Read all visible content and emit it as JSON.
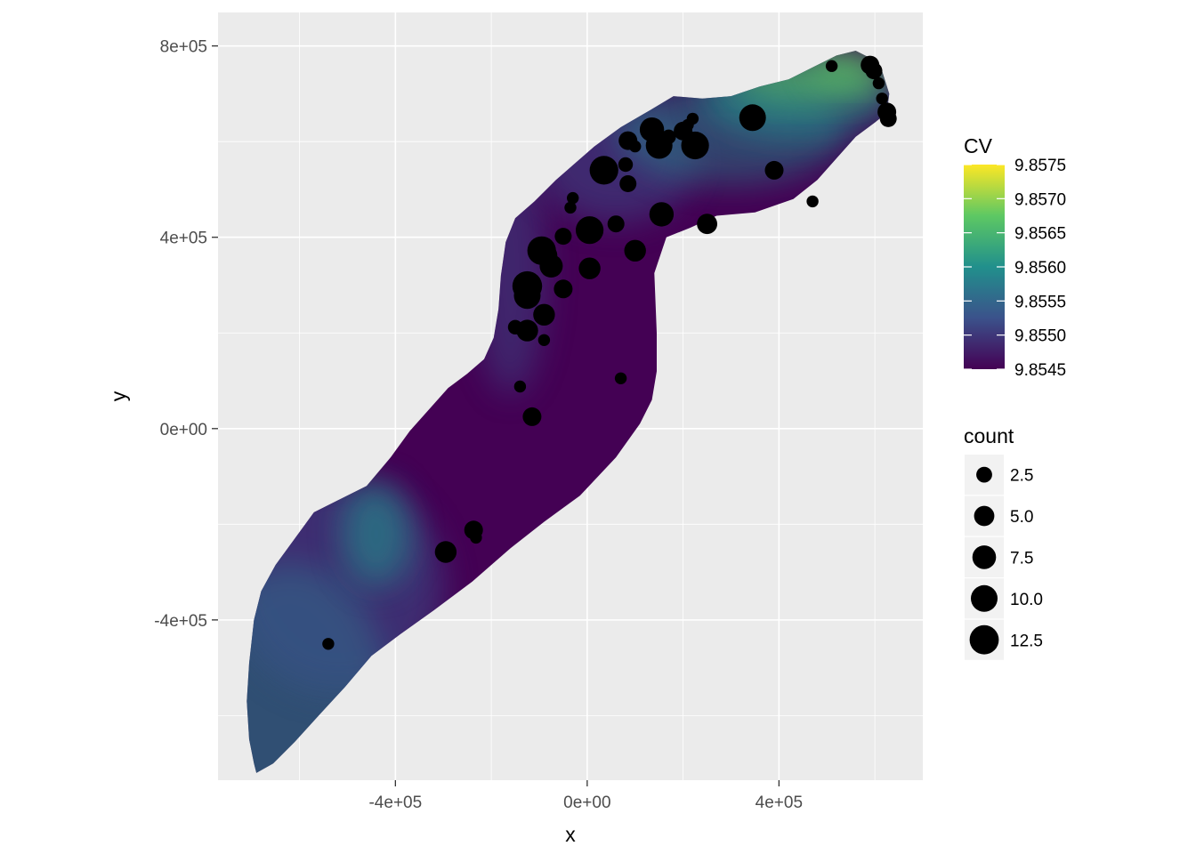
{
  "chart_data": {
    "type": "heatmap",
    "title": "",
    "xlabel": "x",
    "ylabel": "y",
    "xlim": [
      -770000,
      700000
    ],
    "ylim": [
      -735000,
      870000
    ],
    "x_ticks": [
      {
        "value": -400000,
        "label": "-4e+05"
      },
      {
        "value": 0,
        "label": "0e+00"
      },
      {
        "value": 400000,
        "label": "4e+05"
      }
    ],
    "y_ticks": [
      {
        "value": -400000,
        "label": "-4e+05"
      },
      {
        "value": 0,
        "label": "0e+00"
      },
      {
        "value": 400000,
        "label": "4e+05"
      },
      {
        "value": 800000,
        "label": "8e+05"
      }
    ],
    "grid": true,
    "panel_background": "#ebebeb",
    "grid_color": "#ffffff",
    "fill_legend": {
      "title": "CV",
      "range": [
        9.8545,
        9.8575
      ],
      "breaks": [
        {
          "value": 9.8575,
          "label": "9.8575"
        },
        {
          "value": 9.857,
          "label": "9.8570"
        },
        {
          "value": 9.8565,
          "label": "9.8565"
        },
        {
          "value": 9.856,
          "label": "9.8560"
        },
        {
          "value": 9.8555,
          "label": "9.8555"
        },
        {
          "value": 9.855,
          "label": "9.8550"
        },
        {
          "value": 9.8545,
          "label": "9.8545"
        }
      ],
      "colors": [
        "#440154",
        "#3b528b",
        "#21908c",
        "#5dc863",
        "#fde725"
      ]
    },
    "size_legend": {
      "title": "count",
      "breaks": [
        {
          "value": 2.5,
          "label": "2.5"
        },
        {
          "value": 5.0,
          "label": "5.0"
        },
        {
          "value": 7.5,
          "label": "7.5"
        },
        {
          "value": 10.0,
          "label": "10.0"
        },
        {
          "value": 12.5,
          "label": "12.5"
        }
      ]
    },
    "points": [
      {
        "x": -540000,
        "y": -450000,
        "count": 1
      },
      {
        "x": -295000,
        "y": -258000,
        "count": 6
      },
      {
        "x": -237000,
        "y": -212000,
        "count": 4
      },
      {
        "x": -232000,
        "y": -228000,
        "count": 1
      },
      {
        "x": -115000,
        "y": 25000,
        "count": 4
      },
      {
        "x": -140000,
        "y": 88000,
        "count": 1
      },
      {
        "x": 70000,
        "y": 105000,
        "count": 1
      },
      {
        "x": -90000,
        "y": 185000,
        "count": 1
      },
      {
        "x": -125000,
        "y": 205000,
        "count": 6
      },
      {
        "x": -150000,
        "y": 212000,
        "count": 2
      },
      {
        "x": -90000,
        "y": 238000,
        "count": 6
      },
      {
        "x": -125000,
        "y": 278000,
        "count": 10
      },
      {
        "x": -125000,
        "y": 298000,
        "count": 13
      },
      {
        "x": -50000,
        "y": 292000,
        "count": 4
      },
      {
        "x": -75000,
        "y": 340000,
        "count": 7
      },
      {
        "x": -95000,
        "y": 372000,
        "count": 12
      },
      {
        "x": -85000,
        "y": 362000,
        "count": 6
      },
      {
        "x": -50000,
        "y": 402000,
        "count": 3
      },
      {
        "x": 5000,
        "y": 415000,
        "count": 11
      },
      {
        "x": 5000,
        "y": 335000,
        "count": 6
      },
      {
        "x": 60000,
        "y": 428000,
        "count": 3
      },
      {
        "x": 100000,
        "y": 372000,
        "count": 6
      },
      {
        "x": 155000,
        "y": 448000,
        "count": 8
      },
      {
        "x": 250000,
        "y": 428000,
        "count": 5
      },
      {
        "x": -35000,
        "y": 462000,
        "count": 1
      },
      {
        "x": -30000,
        "y": 482000,
        "count": 1
      },
      {
        "x": 35000,
        "y": 540000,
        "count": 12
      },
      {
        "x": 85000,
        "y": 512000,
        "count": 3
      },
      {
        "x": 80000,
        "y": 552000,
        "count": 2
      },
      {
        "x": 85000,
        "y": 602000,
        "count": 4
      },
      {
        "x": 100000,
        "y": 590000,
        "count": 1
      },
      {
        "x": 135000,
        "y": 625000,
        "count": 8
      },
      {
        "x": 150000,
        "y": 592000,
        "count": 10
      },
      {
        "x": 170000,
        "y": 610000,
        "count": 2
      },
      {
        "x": 200000,
        "y": 622000,
        "count": 4
      },
      {
        "x": 210000,
        "y": 635000,
        "count": 1
      },
      {
        "x": 225000,
        "y": 592000,
        "count": 11
      },
      {
        "x": 220000,
        "y": 648000,
        "count": 1
      },
      {
        "x": 345000,
        "y": 650000,
        "count": 10
      },
      {
        "x": 390000,
        "y": 540000,
        "count": 4
      },
      {
        "x": 470000,
        "y": 475000,
        "count": 1
      },
      {
        "x": 510000,
        "y": 758000,
        "count": 1
      },
      {
        "x": 590000,
        "y": 760000,
        "count": 4
      },
      {
        "x": 598000,
        "y": 748000,
        "count": 3
      },
      {
        "x": 608000,
        "y": 722000,
        "count": 1
      },
      {
        "x": 615000,
        "y": 690000,
        "count": 1
      },
      {
        "x": 625000,
        "y": 662000,
        "count": 4
      },
      {
        "x": 628000,
        "y": 648000,
        "count": 3
      }
    ]
  }
}
